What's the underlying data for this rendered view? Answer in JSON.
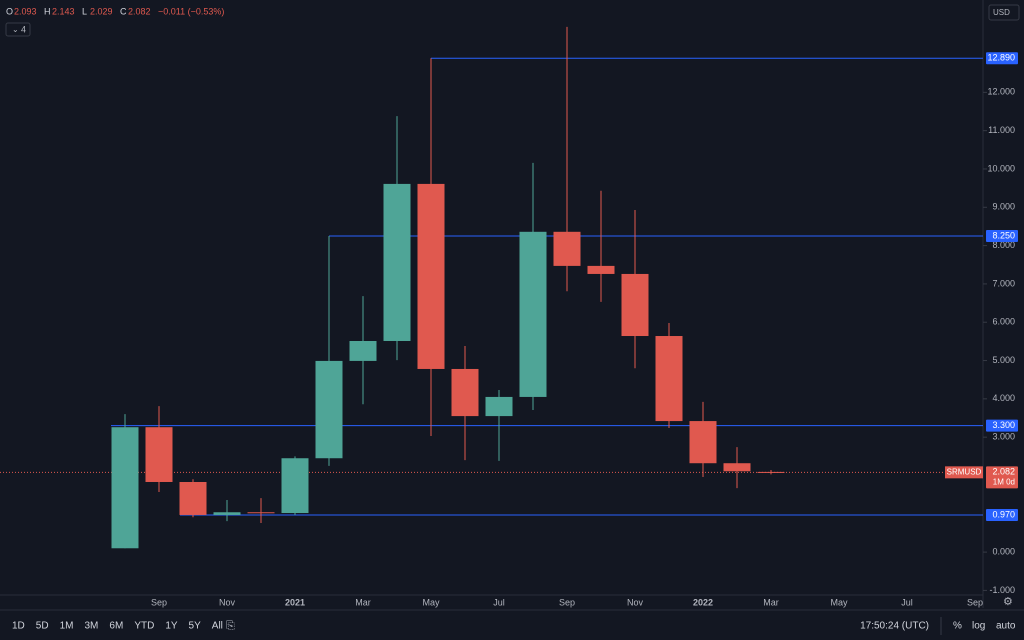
{
  "chart_data": {
    "type": "candlestick",
    "categories": [
      null,
      "Sep",
      null,
      "Nov",
      null,
      "2021",
      null,
      "Mar",
      null,
      "May",
      null,
      "Jul",
      null,
      "Sep",
      null,
      "Nov",
      null,
      "2022",
      null,
      "Mar",
      null,
      "May",
      null,
      "Jul",
      null,
      "Sep"
    ],
    "open": [
      0.1,
      3.26,
      1.83,
      0.97,
      1.04,
      1.02,
      2.45,
      4.99,
      5.51,
      9.61,
      4.78,
      3.55,
      4.05,
      8.36,
      7.47,
      7.26,
      5.64,
      3.42,
      2.32,
      2.093,
      null,
      null,
      null,
      null,
      null,
      null
    ],
    "high": [
      3.6,
      3.81,
      1.9,
      1.36,
      1.41,
      2.5,
      8.25,
      6.68,
      11.38,
      12.89,
      5.38,
      4.23,
      10.16,
      13.71,
      9.43,
      8.93,
      5.98,
      3.92,
      2.74,
      2.143,
      null,
      null,
      null,
      null,
      null,
      null
    ],
    "low": [
      0.1,
      1.57,
      0.91,
      0.81,
      0.76,
      0.97,
      2.25,
      3.86,
      5.01,
      3.03,
      2.4,
      2.38,
      3.71,
      6.81,
      6.53,
      4.8,
      3.24,
      1.96,
      1.67,
      2.029,
      null,
      null,
      null,
      null,
      null,
      null
    ],
    "close": [
      3.26,
      1.83,
      0.97,
      1.04,
      1.02,
      2.45,
      4.99,
      5.51,
      9.61,
      4.78,
      3.55,
      4.05,
      8.36,
      7.47,
      7.26,
      5.64,
      3.42,
      2.32,
      2.11,
      2.082,
      null,
      null,
      null,
      null,
      null,
      null
    ],
    "up_color": "#4fa597",
    "down_color": "#e0594f",
    "level_color": "#2962ff",
    "ylim": [
      -1.25,
      14.41
    ],
    "yticks": [
      {
        "value": -1,
        "label": "-1.000"
      },
      {
        "value": 0,
        "label": "0.000"
      },
      {
        "value": 3,
        "label": "3.000"
      },
      {
        "value": 4,
        "label": "4.000"
      },
      {
        "value": 5,
        "label": "5.000"
      },
      {
        "value": 6,
        "label": "6.000"
      },
      {
        "value": 7,
        "label": "7.000"
      },
      {
        "value": 8,
        "label": "8.000"
      },
      {
        "value": 9,
        "label": "9.000"
      },
      {
        "value": 10,
        "label": "10.000"
      },
      {
        "value": 11,
        "label": "11.000"
      },
      {
        "value": 12,
        "label": "12.000"
      }
    ],
    "levels": [
      {
        "value": 12.89,
        "label": "12.890"
      },
      {
        "value": 8.25,
        "label": "8.250"
      },
      {
        "value": 3.3,
        "label": "3.300"
      },
      {
        "value": 0.97,
        "label": "0.970"
      }
    ],
    "last_price": {
      "value": 2.082,
      "symbol": "SRMUSD",
      "countdown": "1M 0d"
    },
    "change": "−0.011 (−0.53%)",
    "legend_keys": [
      "O",
      "H",
      "L",
      "C"
    ],
    "currency": "USD"
  },
  "indicators_count": "4",
  "toolbar": {
    "ranges": [
      "1D",
      "5D",
      "1M",
      "3M",
      "6M",
      "YTD",
      "1Y",
      "5Y",
      "All"
    ],
    "time": "17:50:24 (UTC)",
    "options": [
      "%",
      "log",
      "auto"
    ]
  }
}
